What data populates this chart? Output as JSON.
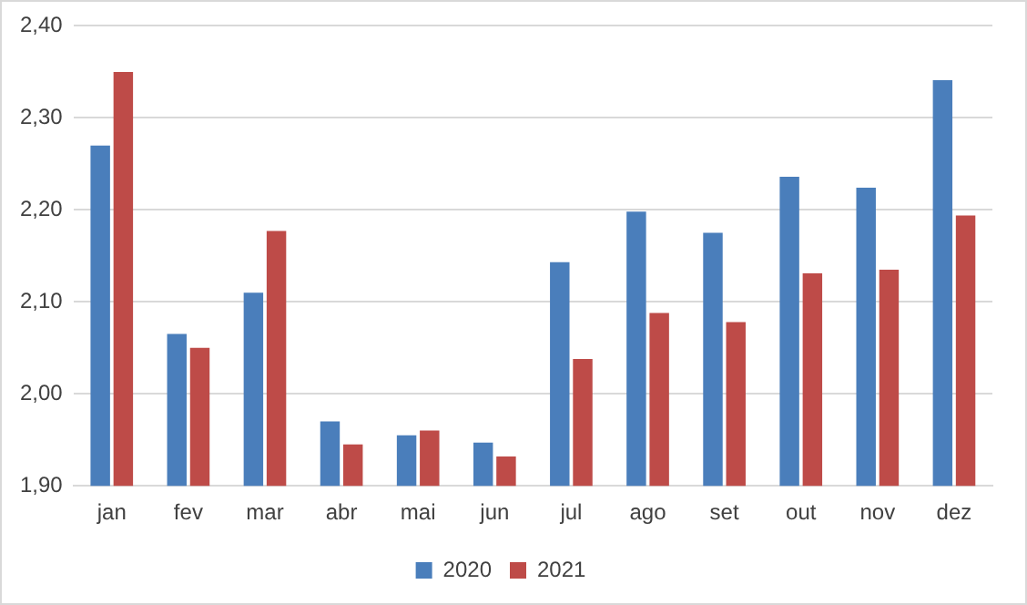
{
  "chart_data": {
    "type": "bar",
    "categories": [
      "jan",
      "fev",
      "mar",
      "abr",
      "mai",
      "jun",
      "jul",
      "ago",
      "set",
      "out",
      "nov",
      "dez"
    ],
    "series": [
      {
        "name": "2020",
        "color": "#4a7ebb",
        "values": [
          2.27,
          2.065,
          2.11,
          1.97,
          1.955,
          1.947,
          2.143,
          2.198,
          2.175,
          2.236,
          2.224,
          2.341
        ]
      },
      {
        "name": "2021",
        "color": "#be4b48",
        "values": [
          2.35,
          2.05,
          2.177,
          1.945,
          1.96,
          1.932,
          2.038,
          2.088,
          2.078,
          2.131,
          2.135,
          2.194
        ]
      }
    ],
    "ylim": [
      1.9,
      2.4
    ],
    "yticks": [
      {
        "value": 1.9,
        "label": "1,90"
      },
      {
        "value": 2.0,
        "label": "2,00"
      },
      {
        "value": 2.1,
        "label": "2,10"
      },
      {
        "value": 2.2,
        "label": "2,20"
      },
      {
        "value": 2.3,
        "label": "2,30"
      },
      {
        "value": 2.4,
        "label": "2,40"
      }
    ],
    "grid": "y",
    "legend": "bottom"
  }
}
